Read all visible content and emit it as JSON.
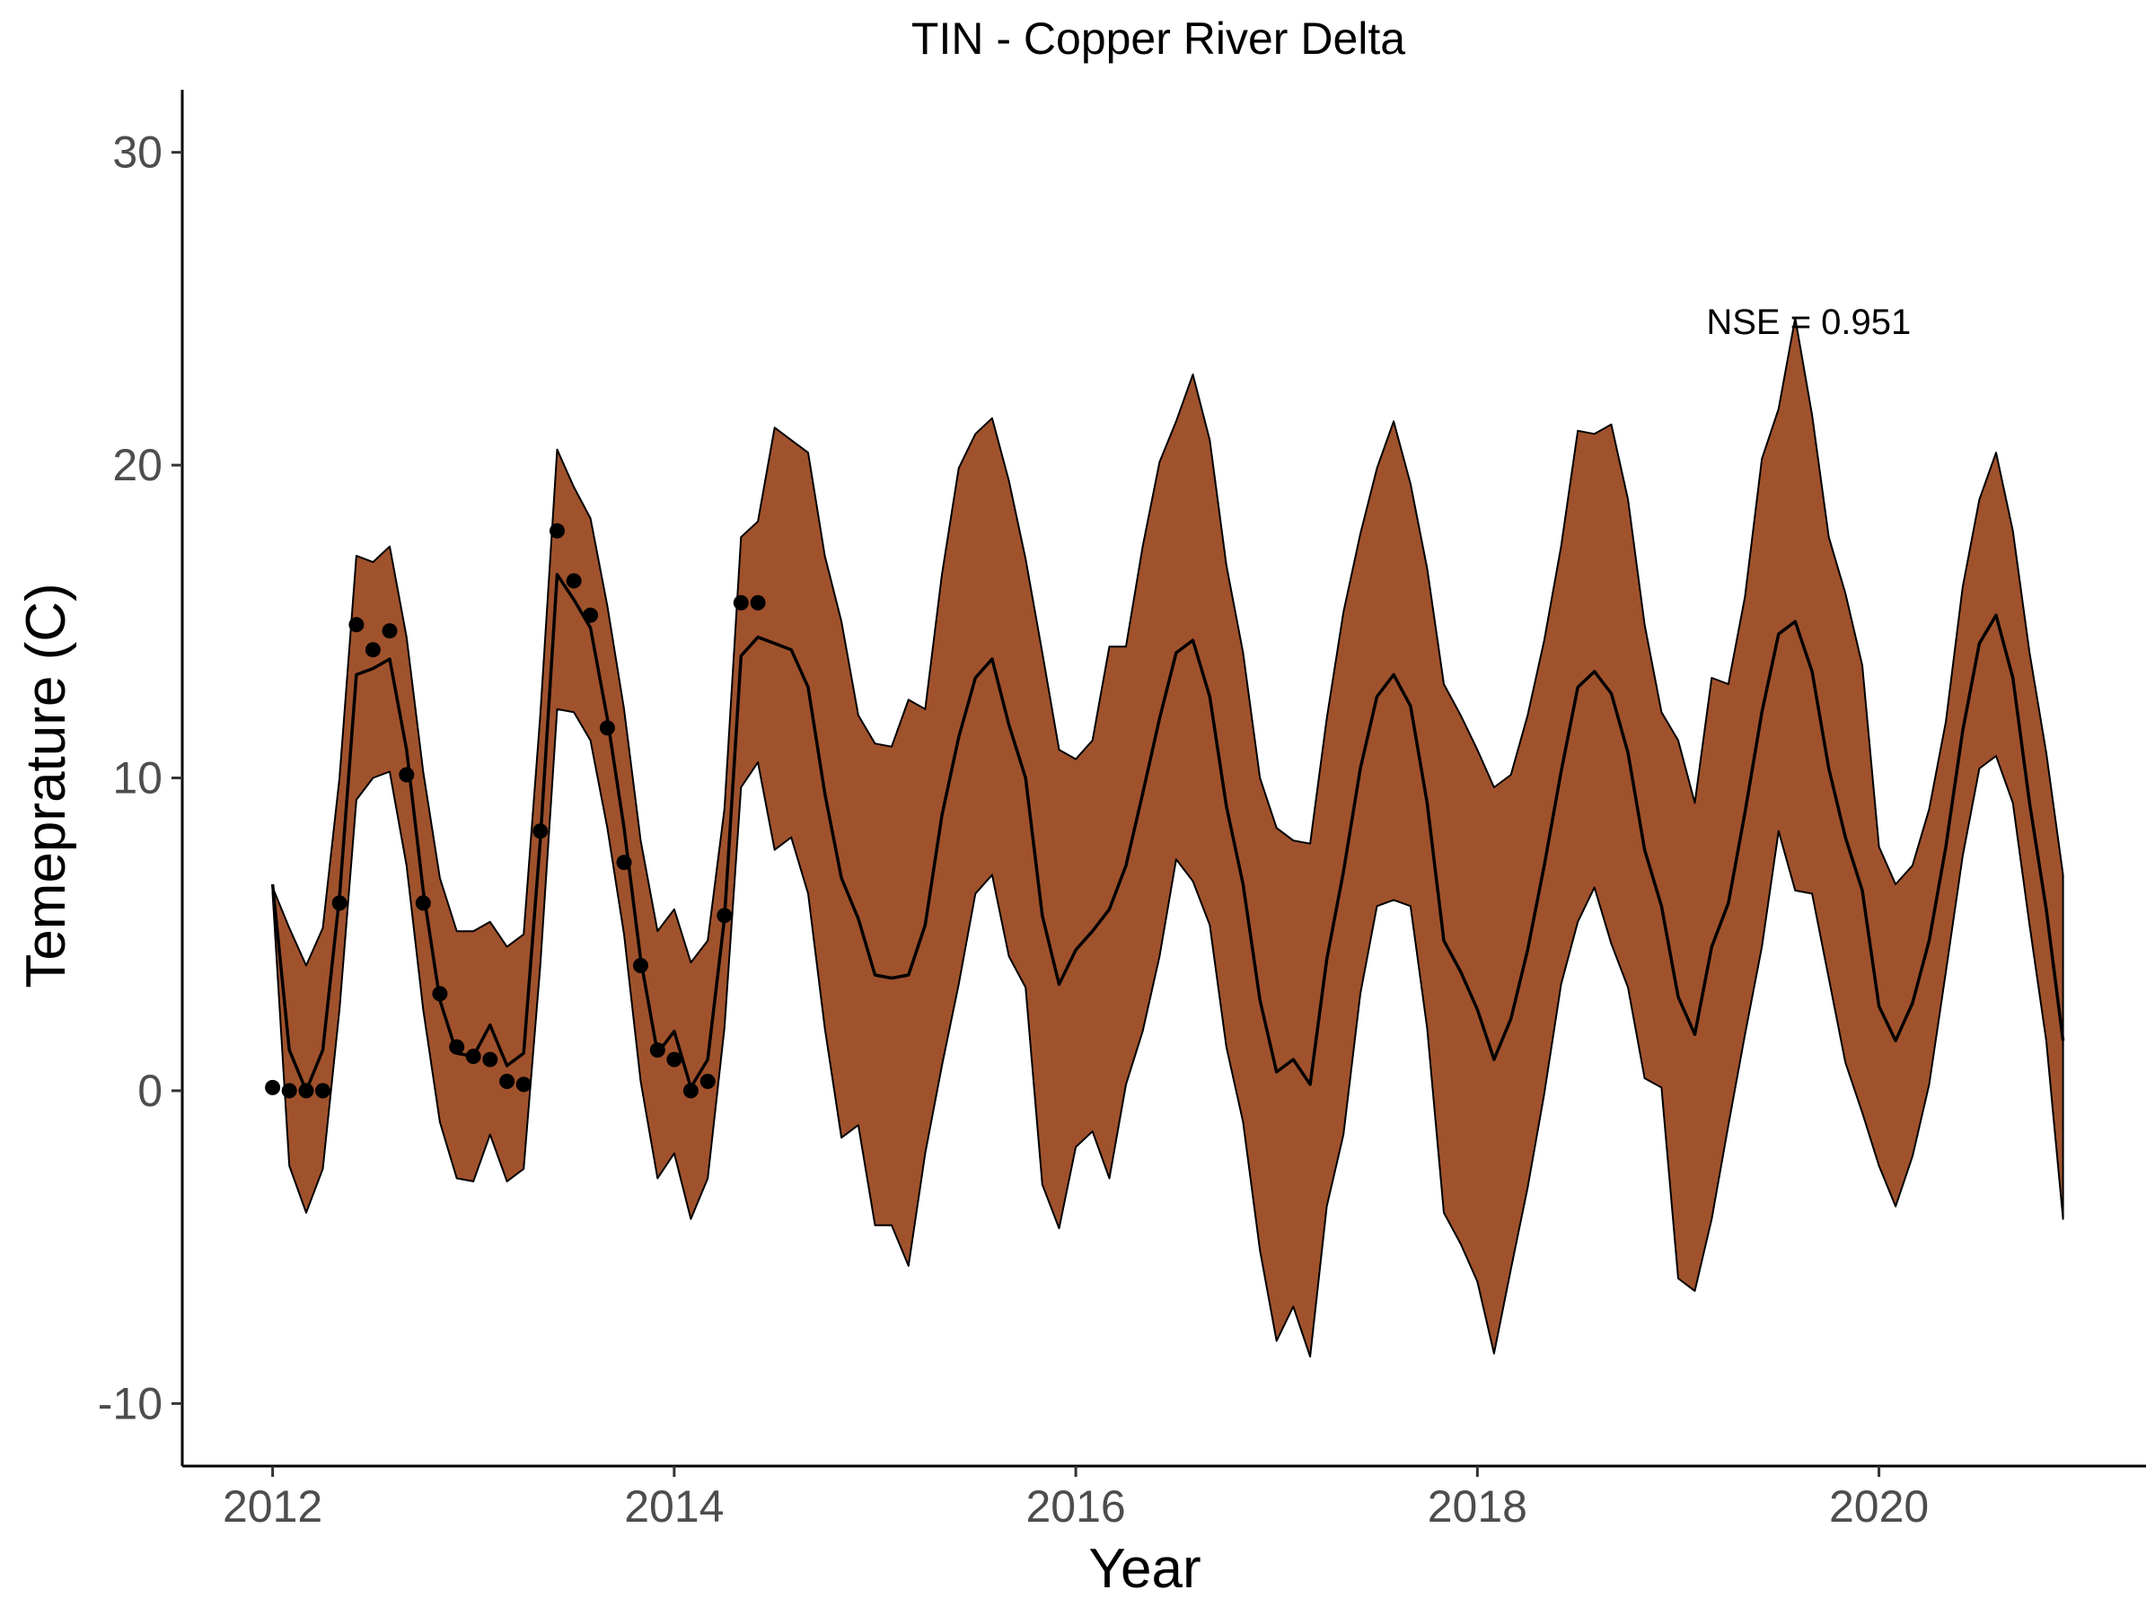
{
  "chart_data": {
    "type": "line",
    "title": "TIN - Copper River Delta",
    "xlabel": "Year",
    "ylabel": "Temeprature (C)",
    "xlim": [
      2011.55,
      2021.33
    ],
    "ylim": [
      -12,
      32
    ],
    "x_ticks": [
      2012,
      2014,
      2016,
      2018,
      2020
    ],
    "y_ticks": [
      -10,
      0,
      10,
      20,
      30
    ],
    "x_tick_labels": [
      "2012",
      "2014",
      "2016",
      "2018",
      "2020"
    ],
    "y_tick_labels": [
      "-10",
      "0",
      "10",
      "20",
      "30"
    ],
    "grid": false,
    "legend": "none",
    "annotation": {
      "text": "NSE = 0.951",
      "x": 2019.65,
      "y": 24.6
    },
    "colors": {
      "band_fill": "#A0522D",
      "line": "#000000",
      "points": "#000000",
      "axis": "#000000"
    },
    "ribbon": {
      "x": [
        2012.0,
        2012.083,
        2012.167,
        2012.25,
        2012.333,
        2012.417,
        2012.5,
        2012.583,
        2012.667,
        2012.75,
        2012.833,
        2012.917,
        2013.0,
        2013.083,
        2013.167,
        2013.25,
        2013.333,
        2013.417,
        2013.5,
        2013.583,
        2013.667,
        2013.75,
        2013.833,
        2013.917,
        2014.0,
        2014.083,
        2014.167,
        2014.25,
        2014.333,
        2014.417,
        2014.5,
        2014.583,
        2014.667,
        2014.75,
        2014.833,
        2014.917,
        2015.0,
        2015.083,
        2015.167,
        2015.25,
        2015.333,
        2015.417,
        2015.5,
        2015.583,
        2015.667,
        2015.75,
        2015.833,
        2015.917,
        2016.0,
        2016.083,
        2016.167,
        2016.25,
        2016.333,
        2016.417,
        2016.5,
        2016.583,
        2016.667,
        2016.75,
        2016.833,
        2016.917,
        2017.0,
        2017.083,
        2017.167,
        2017.25,
        2017.333,
        2017.417,
        2017.5,
        2017.583,
        2017.667,
        2017.75,
        2017.833,
        2017.917,
        2018.0,
        2018.083,
        2018.167,
        2018.25,
        2018.333,
        2018.417,
        2018.5,
        2018.583,
        2018.667,
        2018.75,
        2018.833,
        2018.917,
        2019.0,
        2019.083,
        2019.167,
        2019.25,
        2019.333,
        2019.417,
        2019.5,
        2019.583,
        2019.667,
        2019.75,
        2019.833,
        2019.917,
        2020.0,
        2020.083,
        2020.167,
        2020.25,
        2020.333,
        2020.417,
        2020.5,
        2020.583,
        2020.667,
        2020.75,
        2020.833,
        2020.917
      ],
      "upper": [
        6.5,
        5.2,
        4.0,
        5.2,
        10.0,
        17.1,
        16.9,
        17.4,
        14.5,
        10.2,
        6.8,
        5.1,
        5.1,
        5.4,
        4.6,
        5.0,
        12.0,
        20.5,
        19.3,
        18.3,
        15.5,
        12.2,
        8.0,
        5.1,
        5.8,
        4.1,
        4.8,
        9.0,
        17.7,
        18.2,
        21.2,
        20.8,
        20.4,
        17.1,
        15.0,
        12.0,
        11.1,
        11.0,
        12.5,
        12.2,
        16.5,
        19.9,
        21.0,
        21.5,
        19.5,
        17.0,
        14.0,
        10.9,
        10.6,
        11.2,
        14.2,
        14.2,
        17.4,
        20.1,
        21.4,
        22.9,
        20.8,
        16.8,
        14.0,
        10.0,
        8.4,
        8.0,
        7.9,
        11.9,
        15.3,
        17.8,
        19.9,
        21.4,
        19.4,
        16.7,
        13.0,
        12.0,
        10.9,
        9.7,
        10.1,
        12.0,
        14.4,
        17.4,
        21.1,
        21.0,
        21.3,
        18.9,
        14.9,
        12.1,
        11.2,
        9.2,
        13.2,
        13.0,
        15.8,
        20.2,
        21.8,
        24.7,
        21.6,
        17.7,
        15.9,
        13.6,
        7.8,
        6.6,
        7.2,
        9.0,
        11.8,
        16.1,
        18.9,
        20.4,
        17.9,
        14.0,
        10.8,
        6.9
      ],
      "lower": [
        6.3,
        -2.4,
        -3.9,
        -2.5,
        2.6,
        9.3,
        10.0,
        10.2,
        7.2,
        2.6,
        -1.0,
        -2.8,
        -2.9,
        -1.4,
        -2.9,
        -2.5,
        4.0,
        12.2,
        12.1,
        11.2,
        8.4,
        5.0,
        0.3,
        -2.8,
        -2.0,
        -4.1,
        -2.8,
        2.0,
        9.7,
        10.5,
        7.7,
        8.1,
        6.3,
        2.0,
        -1.5,
        -1.1,
        -4.3,
        -4.3,
        -5.6,
        -2.0,
        0.8,
        3.4,
        6.3,
        6.9,
        4.3,
        3.3,
        -3.0,
        -4.4,
        -1.8,
        -1.3,
        -2.8,
        0.2,
        1.9,
        4.3,
        7.4,
        6.7,
        5.3,
        1.4,
        -1.0,
        -5.1,
        -8.0,
        -6.9,
        -8.5,
        -3.7,
        -1.4,
        3.1,
        5.9,
        6.1,
        5.9,
        2.0,
        -3.9,
        -4.9,
        -6.1,
        -8.4,
        -5.7,
        -3.1,
        -0.1,
        3.4,
        5.4,
        6.5,
        4.7,
        3.3,
        0.4,
        0.1,
        -6.0,
        -6.4,
        -4.1,
        -1.1,
        1.8,
        4.6,
        8.3,
        6.4,
        6.3,
        3.6,
        0.9,
        -0.7,
        -2.4,
        -3.7,
        -2.1,
        0.2,
        3.8,
        7.5,
        10.3,
        10.7,
        9.2,
        5.3,
        1.6,
        -4.1
      ]
    },
    "series": [
      {
        "x": [
          2012.0,
          2012.083,
          2012.167,
          2012.25,
          2012.333,
          2012.417,
          2012.5,
          2012.583,
          2012.667,
          2012.75,
          2012.833,
          2012.917,
          2013.0,
          2013.083,
          2013.167,
          2013.25,
          2013.333,
          2013.417,
          2013.5,
          2013.583,
          2013.667,
          2013.75,
          2013.833,
          2013.917,
          2014.0,
          2014.083,
          2014.167,
          2014.25,
          2014.333,
          2014.417,
          2014.5,
          2014.583,
          2014.667,
          2014.75,
          2014.833,
          2014.917,
          2015.0,
          2015.083,
          2015.167,
          2015.25,
          2015.333,
          2015.417,
          2015.5,
          2015.583,
          2015.667,
          2015.75,
          2015.833,
          2015.917,
          2016.0,
          2016.083,
          2016.167,
          2016.25,
          2016.333,
          2016.417,
          2016.5,
          2016.583,
          2016.667,
          2016.75,
          2016.833,
          2016.917,
          2017.0,
          2017.083,
          2017.167,
          2017.25,
          2017.333,
          2017.417,
          2017.5,
          2017.583,
          2017.667,
          2017.75,
          2017.833,
          2017.917,
          2018.0,
          2018.083,
          2018.167,
          2018.25,
          2018.333,
          2018.417,
          2018.5,
          2018.583,
          2018.667,
          2018.75,
          2018.833,
          2018.917,
          2019.0,
          2019.083,
          2019.167,
          2019.25,
          2019.333,
          2019.417,
          2019.5,
          2019.583,
          2019.667,
          2019.75,
          2019.833,
          2019.917,
          2020.0,
          2020.083,
          2020.167,
          2020.25,
          2020.333,
          2020.417,
          2020.5,
          2020.583,
          2020.667,
          2020.75,
          2020.833,
          2020.917
        ],
        "y": [
          6.6,
          1.3,
          0.0,
          1.3,
          6.2,
          13.3,
          13.5,
          13.8,
          10.9,
          6.4,
          2.9,
          1.2,
          1.1,
          2.1,
          0.8,
          1.2,
          8.0,
          16.5,
          15.7,
          14.8,
          11.9,
          8.4,
          4.2,
          1.2,
          1.9,
          0.1,
          1.0,
          5.5,
          13.9,
          14.5,
          14.3,
          14.1,
          12.9,
          9.5,
          6.8,
          5.5,
          3.7,
          3.6,
          3.7,
          5.3,
          8.8,
          11.3,
          13.2,
          13.8,
          11.7,
          10.0,
          5.6,
          3.4,
          4.5,
          5.1,
          5.8,
          7.2,
          9.5,
          11.9,
          14.0,
          14.4,
          12.6,
          9.1,
          6.6,
          2.9,
          0.6,
          1.0,
          0.2,
          4.2,
          7.0,
          10.3,
          12.6,
          13.3,
          12.3,
          9.2,
          4.8,
          3.8,
          2.6,
          1.0,
          2.3,
          4.5,
          7.2,
          10.2,
          12.9,
          13.4,
          12.7,
          10.8,
          7.7,
          5.9,
          3.0,
          1.8,
          4.6,
          6.0,
          8.9,
          12.1,
          14.6,
          15.0,
          13.4,
          10.3,
          8.1,
          6.4,
          2.7,
          1.6,
          2.8,
          4.8,
          7.8,
          11.5,
          14.3,
          15.2,
          13.2,
          9.2,
          5.8,
          1.6
        ]
      }
    ],
    "points": {
      "x": [
        2012.0,
        2012.083,
        2012.167,
        2012.25,
        2012.333,
        2012.417,
        2012.5,
        2012.583,
        2012.667,
        2012.75,
        2012.833,
        2012.917,
        2013.0,
        2013.083,
        2013.167,
        2013.25,
        2013.333,
        2013.417,
        2013.5,
        2013.583,
        2013.667,
        2013.75,
        2013.833,
        2013.917,
        2014.0,
        2014.083,
        2014.167,
        2014.25,
        2014.333,
        2014.417
      ],
      "y": [
        0.1,
        0.0,
        0.0,
        0.0,
        6.0,
        14.9,
        14.1,
        14.7,
        10.1,
        6.0,
        3.1,
        1.4,
        1.1,
        1.0,
        0.3,
        0.2,
        8.3,
        17.9,
        16.3,
        15.2,
        11.6,
        7.3,
        4.0,
        1.3,
        1.0,
        0.0,
        0.3,
        5.6,
        15.6,
        15.6
      ]
    }
  }
}
